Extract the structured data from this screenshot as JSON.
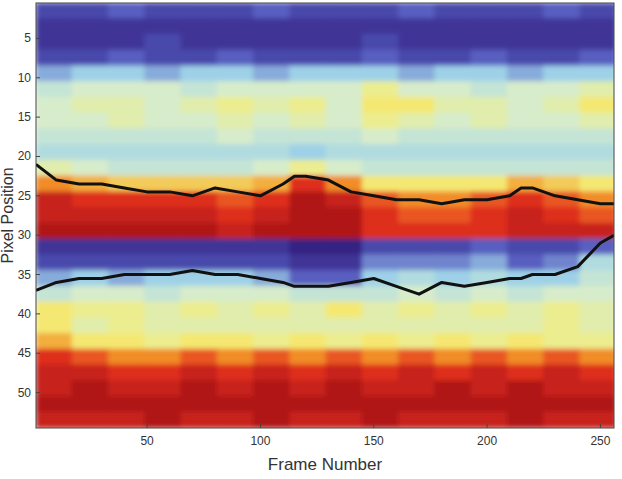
{
  "chart_data": {
    "type": "heatmap",
    "xlabel": "Frame Number",
    "ylabel": "Pixel Position",
    "xlim": [
      1,
      256
    ],
    "ylim": [
      54.5,
      0.5
    ],
    "xticks": [
      50,
      100,
      150,
      200,
      250
    ],
    "yticks": [
      5,
      10,
      15,
      20,
      25,
      30,
      35,
      40,
      45,
      50
    ],
    "x_edges": [
      1,
      17,
      33,
      49,
      65,
      81,
      97,
      113,
      129,
      145,
      161,
      177,
      193,
      209,
      225,
      241,
      257
    ],
    "y_edges": [
      0.5,
      2.5,
      4.5,
      6.5,
      8.5,
      10.5,
      12.5,
      14.5,
      16.5,
      18.5,
      20.5,
      22.5,
      24.5,
      26.5,
      28.5,
      30.5,
      32.5,
      34.5,
      36.5,
      38.5,
      40.5,
      42.5,
      44.5,
      46.5,
      48.5,
      50.5,
      52.5,
      54.5
    ],
    "cells": [
      [
        1,
        1,
        1.5,
        1,
        1,
        1,
        1.5,
        1,
        1,
        1,
        1.5,
        1,
        1,
        1,
        1.5,
        1
      ],
      [
        0.5,
        0.5,
        0.5,
        0.5,
        0.5,
        0.5,
        0.5,
        0.5,
        0.5,
        0.5,
        0.5,
        0.5,
        0.5,
        0.5,
        0.5,
        0.5
      ],
      [
        0.5,
        0.5,
        0.5,
        1,
        0.5,
        0.5,
        0.5,
        0.5,
        0.5,
        1,
        0.5,
        0.5,
        0.5,
        0.5,
        0.5,
        0.5
      ],
      [
        1,
        1,
        1.5,
        1,
        1,
        1.5,
        1,
        1,
        1,
        1.5,
        1,
        1,
        1.5,
        1,
        1,
        1.5
      ],
      [
        2.5,
        3,
        3,
        2.5,
        3,
        3,
        2.5,
        3,
        3,
        3,
        2.5,
        3,
        3,
        2.5,
        3,
        3
      ],
      [
        4,
        4.5,
        4.5,
        4.5,
        4,
        4.5,
        4.5,
        4.5,
        4.5,
        5.5,
        4.5,
        4.5,
        4,
        4.5,
        4.5,
        5
      ],
      [
        4.5,
        5,
        5,
        4.5,
        5,
        5.5,
        5,
        5.5,
        4.5,
        6,
        6,
        5,
        5,
        4.5,
        5,
        6
      ],
      [
        4.5,
        4.5,
        5,
        4.5,
        4.5,
        5,
        4.5,
        5,
        4.5,
        5.5,
        5,
        4.5,
        5,
        4.5,
        4.5,
        5
      ],
      [
        4,
        4,
        4,
        4,
        4,
        4.5,
        4,
        4,
        4,
        4.5,
        4,
        4,
        4,
        4,
        4,
        4
      ],
      [
        3.5,
        3.5,
        3.5,
        3.5,
        3.5,
        3.5,
        3.5,
        3,
        3.5,
        3.5,
        3.5,
        3.5,
        3.5,
        3.5,
        3.5,
        3.5
      ],
      [
        5,
        4.5,
        4,
        4,
        4,
        4,
        4.5,
        5.5,
        4.5,
        4,
        4,
        4,
        4,
        4,
        4,
        4
      ],
      [
        7.5,
        7,
        6.5,
        6.5,
        6.5,
        6.5,
        7,
        8.5,
        7.5,
        6,
        6,
        6,
        6,
        7,
        6.5,
        6
      ],
      [
        9,
        8.5,
        8.5,
        8.5,
        8.5,
        8,
        8.5,
        9.5,
        9,
        8,
        7.5,
        7.5,
        8,
        8.5,
        8,
        7.5
      ],
      [
        9,
        9,
        9,
        9,
        9,
        8.5,
        9,
        9.5,
        9.5,
        8.5,
        8,
        8,
        8.5,
        9,
        8.5,
        8
      ],
      [
        9.5,
        9.5,
        9.5,
        9.5,
        9.5,
        9,
        9.5,
        9.5,
        9.5,
        8.5,
        8.5,
        8.5,
        8.5,
        9,
        9,
        9
      ],
      [
        0.5,
        0.5,
        0.5,
        0.5,
        0.5,
        0.5,
        0.5,
        0,
        0,
        1,
        1,
        1,
        1.5,
        1,
        1,
        1.5
      ],
      [
        1,
        1,
        1,
        1,
        1,
        1,
        1,
        0.5,
        0.5,
        2,
        2,
        2,
        2.5,
        1.5,
        2,
        3.5
      ],
      [
        2.5,
        3,
        2.5,
        3,
        3,
        3,
        2.5,
        1.5,
        1.5,
        3,
        3.5,
        3,
        3.5,
        3,
        3,
        4
      ],
      [
        4,
        4.5,
        4.5,
        4,
        4.5,
        4.5,
        4.5,
        4,
        4,
        4,
        4.5,
        4,
        4.5,
        4,
        4.5,
        4.5
      ],
      [
        6,
        5.5,
        5.5,
        5,
        5.5,
        5,
        5.5,
        5,
        6,
        5,
        5.5,
        5,
        5.5,
        5,
        5.5,
        5
      ],
      [
        6,
        5,
        5.5,
        5,
        5,
        5,
        5,
        5,
        5,
        5,
        5,
        5,
        5,
        5,
        5.5,
        5
      ],
      [
        7,
        6,
        6,
        5.5,
        6,
        6,
        5.5,
        6,
        5.5,
        6,
        5.5,
        6,
        5.5,
        6,
        5.5,
        5.5
      ],
      [
        8.5,
        8,
        7.5,
        7.5,
        8,
        7.5,
        8,
        7.5,
        8,
        7.5,
        8,
        7.5,
        8,
        7.5,
        8,
        7.5
      ],
      [
        9,
        9,
        8.5,
        8.5,
        9,
        8.5,
        9,
        8.5,
        9,
        8.5,
        9,
        8.5,
        9,
        8.5,
        9,
        8.5
      ],
      [
        9,
        9.5,
        9,
        9,
        9.5,
        9,
        9.5,
        9,
        9.5,
        9,
        9,
        9.5,
        9,
        9.5,
        9,
        9
      ],
      [
        9.5,
        9.5,
        9.5,
        9.5,
        9.5,
        9.5,
        9.5,
        9.5,
        9.5,
        9.5,
        9.5,
        9.5,
        9.5,
        9.5,
        9.5,
        9.5
      ],
      [
        9,
        9,
        9,
        9.5,
        9,
        9,
        9.5,
        9,
        9,
        9.5,
        9,
        9,
        9,
        9.5,
        9,
        9
      ]
    ],
    "x": [
      1,
      10,
      20,
      30,
      40,
      50,
      60,
      70,
      80,
      90,
      100,
      110,
      115,
      120,
      130,
      140,
      150,
      160,
      170,
      180,
      190,
      200,
      210,
      215,
      220,
      230,
      240,
      250,
      256
    ],
    "series": [
      {
        "type": "line",
        "color": "#111111",
        "values": [
          21,
          23,
          23.5,
          23.5,
          24,
          24.5,
          24.5,
          25,
          24,
          24.5,
          25,
          23.5,
          22.5,
          22.5,
          23,
          24.5,
          25,
          25.5,
          25.5,
          26,
          25.5,
          25.5,
          25,
          24,
          24,
          25,
          25.5,
          26,
          26
        ]
      },
      {
        "type": "line",
        "color": "#111111",
        "values": [
          37,
          36,
          35.5,
          35.5,
          35,
          35,
          35,
          34.5,
          35,
          35,
          35.5,
          36,
          36.5,
          36.5,
          36.5,
          36,
          35.5,
          36.5,
          37.5,
          36,
          36.5,
          36,
          35.5,
          35.5,
          35,
          35,
          34,
          31,
          30
        ]
      }
    ]
  }
}
